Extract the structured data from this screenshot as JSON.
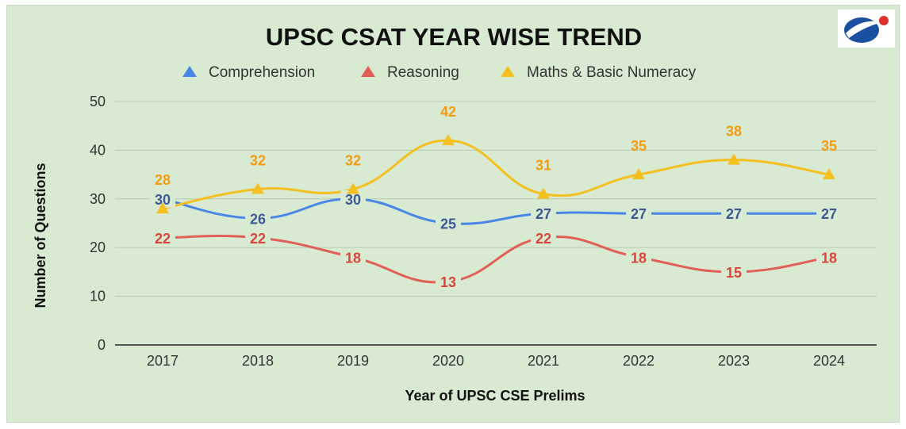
{
  "chart_data": {
    "type": "line",
    "title": "UPSC CSAT YEAR WISE TREND",
    "xlabel": "Year of UPSC CSE Prelims",
    "ylabel": "Number of Questions",
    "categories": [
      "2017",
      "2018",
      "2019",
      "2020",
      "2021",
      "2022",
      "2023",
      "2024"
    ],
    "ylim": [
      0,
      50
    ],
    "yticks": [
      "0",
      "10",
      "20",
      "30",
      "40",
      "50"
    ],
    "grid": true,
    "legend_position": "top",
    "series": [
      {
        "name": "Comprehension",
        "color": "#4a86e8",
        "label_color": "#3d5a96",
        "values": [
          30,
          26,
          30,
          25,
          27,
          27,
          27,
          27
        ]
      },
      {
        "name": "Reasoning",
        "color": "#e06055",
        "label_color": "#d9453b",
        "values": [
          22,
          22,
          18,
          13,
          22,
          18,
          15,
          18
        ]
      },
      {
        "name": "Maths & Basic Numeracy",
        "color": "#f4c020",
        "label_color": "#f39c12",
        "values": [
          28,
          32,
          32,
          42,
          31,
          35,
          38,
          35
        ]
      }
    ]
  },
  "logo": {
    "icon": "brand-logo-icon",
    "colors": [
      "#1b4fa0",
      "#e03030"
    ]
  }
}
